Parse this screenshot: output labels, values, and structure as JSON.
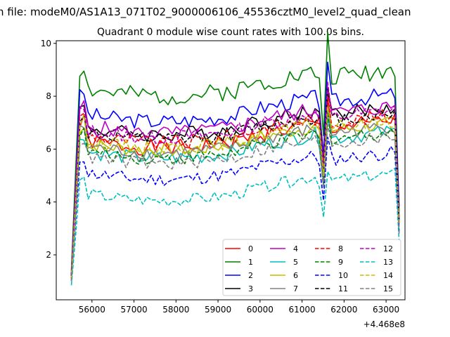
{
  "figure": {
    "suptitle": "n file: modeM0/AS1A13_071T02_9000006106_45536cztM0_level2_quad_clean",
    "title": "Quadrant 0 module wise count rates with 100.0s bins."
  },
  "chart_data": {
    "type": "line",
    "title": "Quadrant 0 module wise count rates with 100.0s bins.",
    "xlabel": "",
    "ylabel": "",
    "x_offset_label": "+4.468e8",
    "xlim": [
      55150,
      63450
    ],
    "ylim": [
      0.3,
      10.1
    ],
    "xticks": [
      56000,
      57000,
      58000,
      59000,
      60000,
      61000,
      62000,
      63000
    ],
    "yticks": [
      2,
      4,
      6,
      8,
      10
    ],
    "grid": false,
    "legend": {
      "placement": "lower-right",
      "columns": 4
    },
    "x": {
      "start": 55510,
      "step": 100,
      "count": 79
    },
    "series": [
      {
        "name": "0",
        "color": "#ff0000",
        "dash": false,
        "base": 6.4,
        "amp": 0.3,
        "seed": 1,
        "start_val": 1.2
      },
      {
        "name": "1",
        "color": "#008000",
        "dash": false,
        "base": 8.35,
        "amp": 0.35,
        "seed": 2,
        "start_val": 1.4
      },
      {
        "name": "2",
        "color": "#0000ff",
        "dash": false,
        "base": 7.4,
        "amp": 0.3,
        "seed": 3,
        "start_val": 1.3
      },
      {
        "name": "3",
        "color": "#000000",
        "dash": false,
        "base": 6.9,
        "amp": 0.3,
        "seed": 4,
        "start_val": 1.2
      },
      {
        "name": "4",
        "color": "#bf00bf",
        "dash": false,
        "base": 6.95,
        "amp": 0.3,
        "seed": 5,
        "start_val": 1.2
      },
      {
        "name": "5",
        "color": "#00bfbf",
        "dash": false,
        "base": 6.0,
        "amp": 0.28,
        "seed": 6,
        "start_val": 1.1
      },
      {
        "name": "6",
        "color": "#bfbf00",
        "dash": false,
        "base": 6.3,
        "amp": 0.26,
        "seed": 7,
        "start_val": 1.1
      },
      {
        "name": "7",
        "color": "#808080",
        "dash": false,
        "base": 6.2,
        "amp": 0.26,
        "seed": 8,
        "start_val": 1.1
      },
      {
        "name": "8",
        "color": "#ff0000",
        "dash": true,
        "base": 6.6,
        "amp": 0.28,
        "seed": 9,
        "start_val": 1.2
      },
      {
        "name": "9",
        "color": "#008000",
        "dash": true,
        "base": 6.0,
        "amp": 0.25,
        "seed": 10,
        "start_val": 1.1
      },
      {
        "name": "10",
        "color": "#0000ff",
        "dash": true,
        "base": 5.2,
        "amp": 0.25,
        "seed": 11,
        "start_val": 1.0
      },
      {
        "name": "11",
        "color": "#000000",
        "dash": true,
        "base": 6.7,
        "amp": 0.28,
        "seed": 12,
        "start_val": 1.2
      },
      {
        "name": "12",
        "color": "#bf00bf",
        "dash": true,
        "base": 6.8,
        "amp": 0.28,
        "seed": 13,
        "start_val": 1.2
      },
      {
        "name": "13",
        "color": "#00bfbf",
        "dash": true,
        "base": 4.4,
        "amp": 0.22,
        "seed": 14,
        "start_val": 0.85
      },
      {
        "name": "14",
        "color": "#bfbf00",
        "dash": true,
        "base": 6.4,
        "amp": 0.26,
        "seed": 15,
        "start_val": 1.1
      },
      {
        "name": "15",
        "color": "#808080",
        "dash": true,
        "base": 5.8,
        "amp": 0.25,
        "seed": 16,
        "start_val": 1.0
      }
    ]
  }
}
